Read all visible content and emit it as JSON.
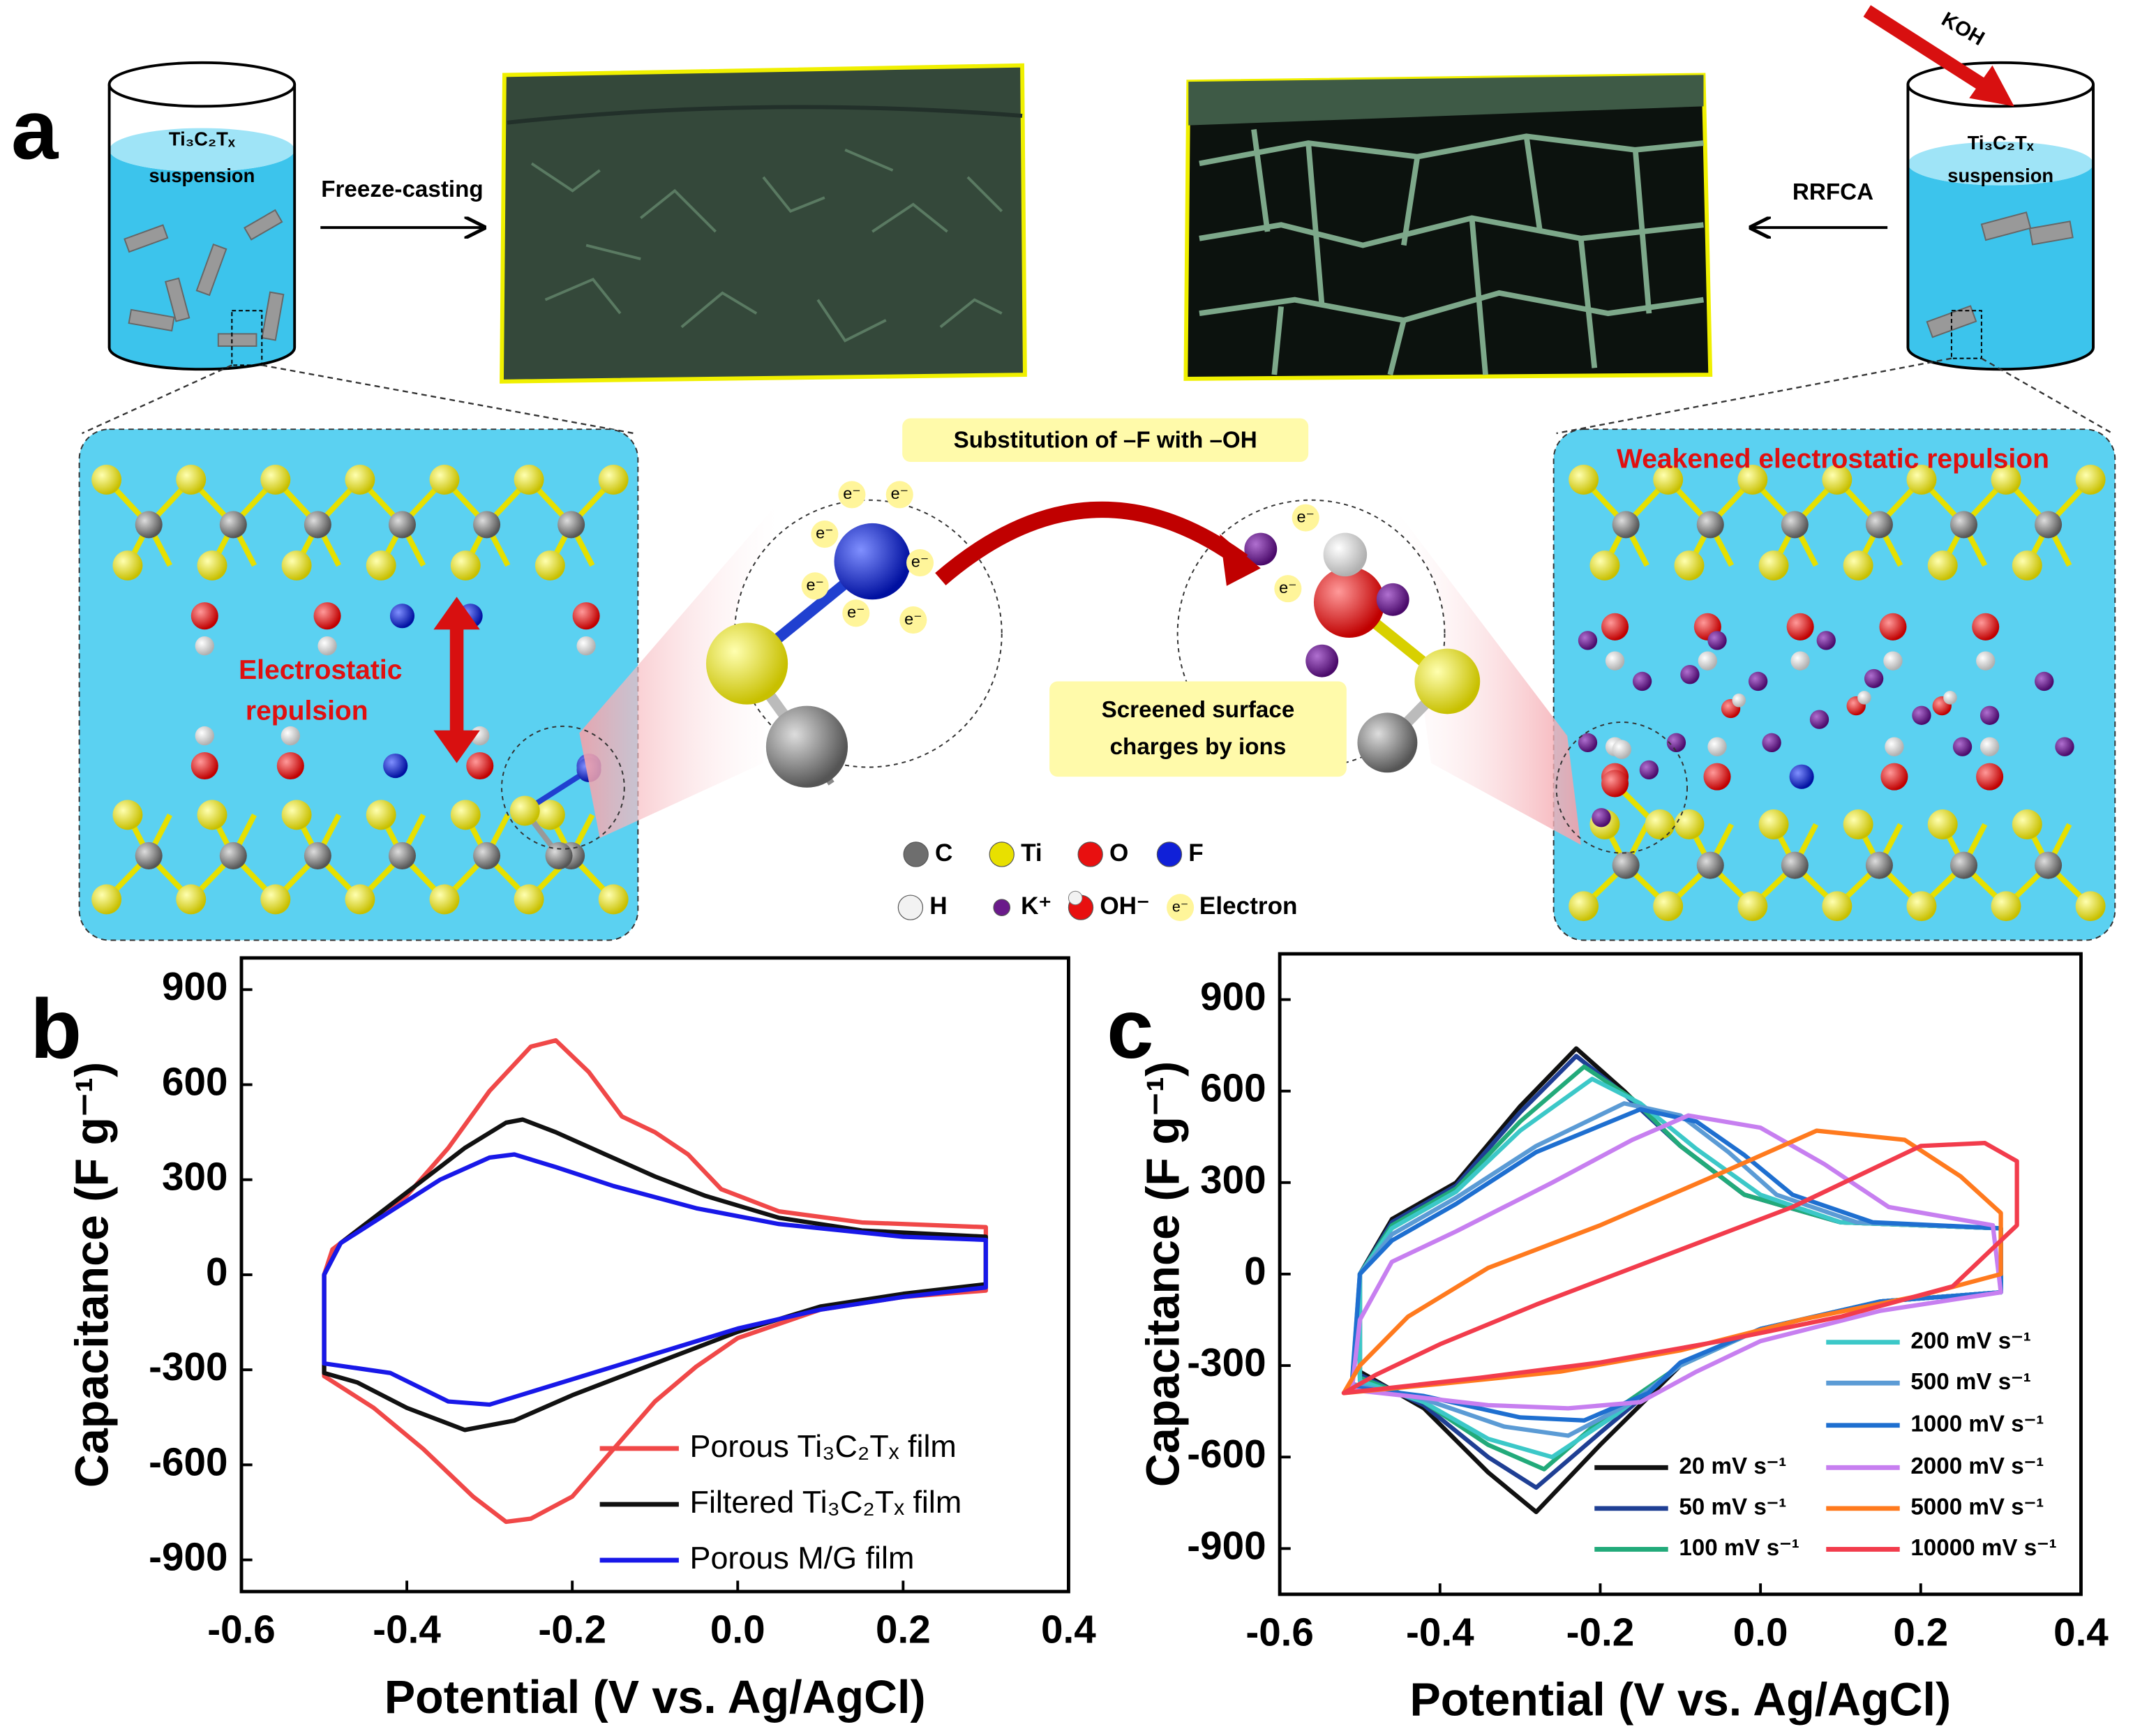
{
  "panel_labels": [
    "a",
    "b",
    "c"
  ],
  "diagram": {
    "suspension_label": [
      "Ti₃C₂Tₓ",
      "suspension"
    ],
    "freeze_casting": "Freeze-casting",
    "rrfca": "RRFCA",
    "koh": "KOH",
    "substitution": "Substitution of –F with –OH",
    "electrostatic_repulsion": [
      "Electrostatic",
      "repulsion"
    ],
    "weakened": "Weakened electrostatic repulsion",
    "screened": [
      "Screened surface",
      "charges by ions"
    ],
    "electron_symbol": "e⁻",
    "legend": [
      {
        "label": "C",
        "color": "#6e6e6e"
      },
      {
        "label": "Ti",
        "color": "#e8e000"
      },
      {
        "label": "O",
        "color": "#e81010"
      },
      {
        "label": "F",
        "color": "#1020d8"
      },
      {
        "label": "H",
        "color": "#f2f2f2"
      },
      {
        "label": "K⁺",
        "color": "#6a1a8a"
      },
      {
        "label": "OH⁻",
        "color": "#e81010"
      },
      {
        "label": "Electron",
        "color": "#fff59a"
      }
    ]
  },
  "chart_data": [
    {
      "type": "line",
      "x_label": "Potential (V vs. Ag/AgCl)",
      "y_label": "Capacitance (F g⁻¹)",
      "xlim": [
        -0.6,
        0.4
      ],
      "xticks": [
        -0.6,
        -0.4,
        -0.2,
        {
          "value": 0,
          "label": "0.0"
        },
        0.2,
        0.4
      ],
      "ylim": [
        -1000,
        1000
      ],
      "yticks": [
        -900,
        -600,
        -300,
        0,
        300,
        600,
        900
      ],
      "legend": "lower right",
      "series": [
        {
          "name": "Porous Ti₃C₂Tₓ film",
          "color": "#f04848",
          "x": [
            -0.5,
            -0.5,
            -0.49,
            -0.45,
            -0.4,
            -0.35,
            -0.3,
            -0.25,
            -0.22,
            -0.18,
            -0.14,
            -0.1,
            -0.06,
            -0.02,
            0.05,
            0.15,
            0.3,
            0.3,
            0.2,
            0.1,
            0.0,
            -0.05,
            -0.1,
            -0.15,
            -0.2,
            -0.25,
            -0.28,
            -0.32,
            -0.38,
            -0.44,
            -0.5
          ],
          "values": [
            -300,
            0,
            80,
            160,
            250,
            400,
            580,
            720,
            740,
            640,
            500,
            450,
            380,
            270,
            200,
            165,
            150,
            -50,
            -70,
            -110,
            -200,
            -290,
            -400,
            -550,
            -700,
            -770,
            -780,
            -700,
            -550,
            -420,
            -320
          ]
        },
        {
          "name": "Filtered Ti₃C₂Tₓ film",
          "color": "#111111",
          "x": [
            -0.5,
            -0.5,
            -0.48,
            -0.43,
            -0.38,
            -0.33,
            -0.28,
            -0.26,
            -0.22,
            -0.16,
            -0.1,
            -0.04,
            0.05,
            0.15,
            0.3,
            0.3,
            0.2,
            0.1,
            0.0,
            -0.1,
            -0.2,
            -0.27,
            -0.33,
            -0.4,
            -0.46,
            -0.5
          ],
          "values": [
            -300,
            0,
            100,
            200,
            300,
            400,
            480,
            490,
            450,
            380,
            310,
            250,
            180,
            140,
            120,
            -30,
            -60,
            -100,
            -180,
            -280,
            -380,
            -460,
            -490,
            -420,
            -340,
            -310
          ]
        },
        {
          "name": "Porous M/G film",
          "color": "#1818e8",
          "x": [
            -0.5,
            -0.5,
            -0.48,
            -0.42,
            -0.36,
            -0.3,
            -0.27,
            -0.22,
            -0.15,
            -0.05,
            0.05,
            0.2,
            0.3,
            0.3,
            0.2,
            0.1,
            0.0,
            -0.1,
            -0.2,
            -0.3,
            -0.35,
            -0.42,
            -0.5
          ],
          "values": [
            -280,
            0,
            100,
            200,
            300,
            370,
            380,
            340,
            280,
            210,
            160,
            120,
            110,
            -40,
            -70,
            -110,
            -170,
            -250,
            -330,
            -410,
            -400,
            -310,
            -280
          ]
        }
      ]
    },
    {
      "type": "line",
      "x_label": "Potential (V vs. Ag/AgCl)",
      "y_label": "Capacitance (F g⁻¹)",
      "xlim": [
        -0.6,
        0.4
      ],
      "xticks": [
        -0.6,
        -0.4,
        -0.2,
        {
          "value": 0,
          "label": "0.0"
        },
        0.2,
        0.4
      ],
      "ylim": [
        -1050,
        1050
      ],
      "yticks": [
        -900,
        -600,
        -300,
        0,
        300,
        600,
        900
      ],
      "legend": "lower right",
      "series": [
        {
          "name": "20 mV s⁻¹",
          "color": "#111111",
          "x": [
            -0.5,
            -0.5,
            -0.46,
            -0.38,
            -0.3,
            -0.23,
            -0.17,
            -0.1,
            -0.02,
            0.1,
            0.3,
            0.3,
            0.15,
            0.0,
            -0.1,
            -0.2,
            -0.28,
            -0.34,
            -0.42,
            -0.5
          ],
          "values": [
            -320,
            0,
            180,
            300,
            550,
            740,
            600,
            420,
            260,
            170,
            150,
            -60,
            -90,
            -180,
            -300,
            -560,
            -780,
            -650,
            -440,
            -320
          ]
        },
        {
          "name": "50 mV s⁻¹",
          "color": "#1f3f94",
          "x": [
            -0.5,
            -0.5,
            -0.46,
            -0.38,
            -0.3,
            -0.23,
            -0.17,
            -0.1,
            -0.02,
            0.1,
            0.3,
            0.3,
            0.15,
            0.0,
            -0.1,
            -0.2,
            -0.28,
            -0.34,
            -0.42,
            -0.5
          ],
          "values": [
            -330,
            0,
            170,
            290,
            530,
            715,
            590,
            420,
            260,
            170,
            150,
            -60,
            -90,
            -180,
            -300,
            -520,
            -700,
            -600,
            -430,
            -330
          ]
        },
        {
          "name": "100 mV s⁻¹",
          "color": "#22aa7a",
          "x": [
            -0.5,
            -0.5,
            -0.46,
            -0.38,
            -0.3,
            -0.22,
            -0.16,
            -0.1,
            -0.02,
            0.1,
            0.3,
            0.3,
            0.15,
            0.0,
            -0.1,
            -0.2,
            -0.27,
            -0.34,
            -0.42,
            -0.5
          ],
          "values": [
            -340,
            0,
            160,
            280,
            500,
            680,
            575,
            420,
            260,
            170,
            150,
            -60,
            -90,
            -180,
            -300,
            -480,
            -640,
            -560,
            -420,
            -340
          ]
        },
        {
          "name": "200 mV s⁻¹",
          "color": "#3cc8c8",
          "x": [
            -0.5,
            -0.5,
            -0.46,
            -0.38,
            -0.3,
            -0.21,
            -0.15,
            -0.08,
            0.0,
            0.1,
            0.3,
            0.3,
            0.15,
            0.0,
            -0.1,
            -0.18,
            -0.26,
            -0.34,
            -0.42,
            -0.5
          ],
          "values": [
            -350,
            0,
            150,
            270,
            470,
            640,
            560,
            410,
            260,
            170,
            150,
            -60,
            -90,
            -180,
            -300,
            -460,
            -600,
            -540,
            -420,
            -350
          ]
        },
        {
          "name": "500 mV s⁻¹",
          "color": "#5b9bd5",
          "x": [
            -0.51,
            -0.5,
            -0.46,
            -0.38,
            -0.28,
            -0.17,
            -0.1,
            -0.04,
            0.02,
            0.12,
            0.3,
            0.3,
            0.15,
            0.0,
            -0.1,
            -0.16,
            -0.24,
            -0.32,
            -0.42,
            -0.51
          ],
          "values": [
            -360,
            0,
            130,
            250,
            420,
            560,
            520,
            400,
            260,
            170,
            150,
            -60,
            -90,
            -180,
            -300,
            -420,
            -530,
            -500,
            -410,
            -360
          ]
        },
        {
          "name": "1000 mV s⁻¹",
          "color": "#1e6fd0",
          "x": [
            -0.51,
            -0.5,
            -0.46,
            -0.38,
            -0.28,
            -0.15,
            -0.08,
            -0.02,
            0.04,
            0.14,
            0.3,
            0.3,
            0.15,
            0.0,
            -0.1,
            -0.14,
            -0.22,
            -0.3,
            -0.42,
            -0.51
          ],
          "values": [
            -370,
            0,
            110,
            230,
            400,
            540,
            500,
            390,
            260,
            170,
            150,
            -60,
            -90,
            -180,
            -290,
            -390,
            -480,
            -470,
            -400,
            -370
          ]
        },
        {
          "name": "2000 mV s⁻¹",
          "color": "#c77ff0",
          "x": [
            -0.51,
            -0.5,
            -0.46,
            -0.38,
            -0.26,
            -0.16,
            -0.09,
            0.0,
            0.08,
            0.16,
            0.29,
            0.3,
            0.15,
            0.0,
            -0.08,
            -0.15,
            -0.24,
            -0.34,
            -0.44,
            -0.51
          ],
          "values": [
            -380,
            -150,
            40,
            140,
            300,
            440,
            520,
            480,
            360,
            220,
            160,
            -60,
            -120,
            -220,
            -320,
            -420,
            -440,
            -430,
            -400,
            -380
          ]
        },
        {
          "name": "5000 mV s⁻¹",
          "color": "#ff7a1e",
          "x": [
            -0.52,
            -0.5,
            -0.44,
            -0.34,
            -0.2,
            -0.05,
            0.07,
            0.18,
            0.25,
            0.3,
            0.3,
            0.2,
            0.05,
            -0.1,
            -0.25,
            -0.4,
            -0.52
          ],
          "values": [
            -390,
            -300,
            -140,
            20,
            160,
            330,
            470,
            440,
            320,
            200,
            0,
            -70,
            -150,
            -250,
            -320,
            -360,
            -390
          ]
        },
        {
          "name": "10000 mV s⁻¹",
          "color": "#f23c4c",
          "x": [
            -0.52,
            -0.48,
            -0.4,
            -0.28,
            -0.12,
            0.04,
            0.2,
            0.28,
            0.32,
            0.32,
            0.24,
            0.1,
            -0.05,
            -0.2,
            -0.35,
            -0.52
          ],
          "values": [
            -390,
            -330,
            -230,
            -100,
            60,
            220,
            420,
            430,
            370,
            160,
            -40,
            -140,
            -220,
            -290,
            -340,
            -390
          ]
        }
      ]
    }
  ]
}
